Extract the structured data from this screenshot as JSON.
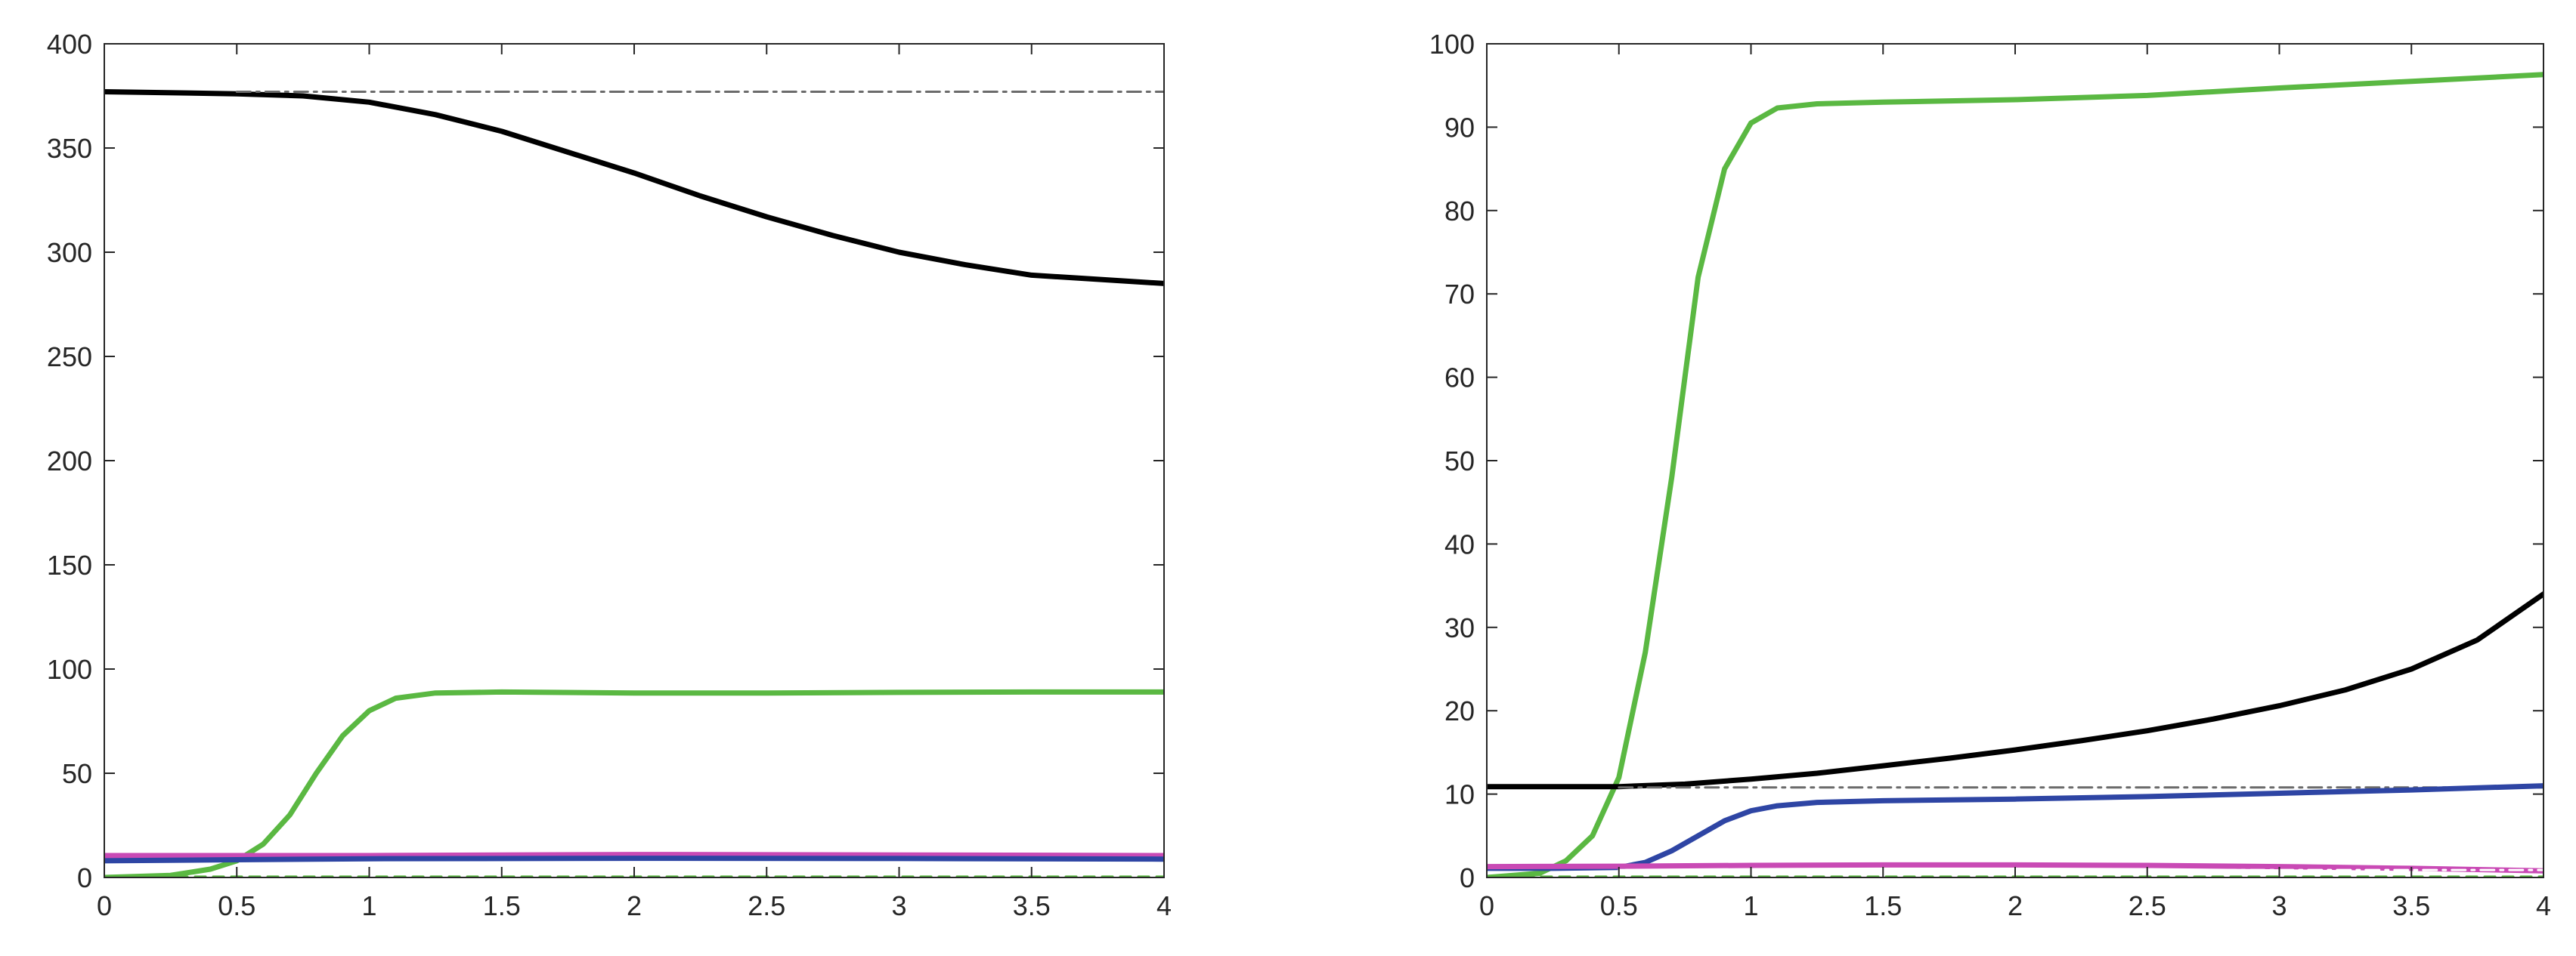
{
  "chart_data": [
    {
      "type": "line",
      "title": "",
      "xlabel": "",
      "ylabel": "",
      "xlim": [
        0,
        4
      ],
      "ylim": [
        0,
        400
      ],
      "xticks": [
        "0",
        "0.5",
        "1",
        "1.5",
        "2",
        "2.5",
        "3",
        "3.5",
        "4"
      ],
      "yticks": [
        "0",
        "50",
        "100",
        "150",
        "200",
        "250",
        "300",
        "350",
        "400"
      ],
      "grid": false,
      "series": [
        {
          "color": "#000000",
          "style": "solid",
          "x": [
            0,
            0.5,
            0.75,
            1.0,
            1.25,
            1.5,
            1.75,
            2.0,
            2.25,
            2.5,
            2.75,
            3.0,
            3.25,
            3.5,
            3.75,
            4.0
          ],
          "y": [
            377,
            376,
            375,
            372,
            366,
            358,
            348,
            338,
            327,
            317,
            308,
            300,
            294,
            289,
            287,
            285
          ]
        },
        {
          "color": "#6b6b6b",
          "style": "dashdot",
          "x": [
            0.5,
            4.0
          ],
          "y": [
            377,
            377
          ]
        },
        {
          "color": "#5ab842",
          "style": "solid",
          "x": [
            0,
            0.25,
            0.4,
            0.5,
            0.6,
            0.7,
            0.8,
            0.9,
            1.0,
            1.1,
            1.25,
            1.5,
            2.0,
            2.5,
            3.0,
            3.5,
            4.0
          ],
          "y": [
            0,
            1,
            4,
            8,
            16,
            30,
            50,
            68,
            80,
            86,
            88.5,
            89,
            88.5,
            88.5,
            88.8,
            89,
            89
          ]
        },
        {
          "color": "#c94ab5",
          "style": "solid",
          "x": [
            0,
            1,
            2,
            3,
            4
          ],
          "y": [
            10.5,
            10.5,
            11,
            10.8,
            10.5
          ]
        },
        {
          "color": "#2e45a4",
          "style": "solid",
          "x": [
            0,
            0.5,
            1,
            2,
            3,
            4
          ],
          "y": [
            8,
            8.5,
            9,
            9.2,
            9.1,
            8.8
          ]
        },
        {
          "color": "#ffffff",
          "style": "dashdot",
          "x": [
            1,
            4
          ],
          "y": [
            6,
            6
          ]
        },
        {
          "color": "#5ab842",
          "style": "dashed",
          "x": [
            0,
            4
          ],
          "y": [
            0.4,
            0.4
          ]
        }
      ]
    },
    {
      "type": "line",
      "title": "",
      "xlabel": "",
      "ylabel": "",
      "xlim": [
        0,
        4
      ],
      "ylim": [
        0,
        100
      ],
      "xticks": [
        "0",
        "0.5",
        "1",
        "1.5",
        "2",
        "2.5",
        "3",
        "3.5",
        "4"
      ],
      "yticks": [
        "0",
        "10",
        "20",
        "30",
        "40",
        "50",
        "60",
        "70",
        "80",
        "90",
        "100"
      ],
      "grid": false,
      "series": [
        {
          "color": "#5ab842",
          "style": "solid",
          "x": [
            0,
            0.2,
            0.3,
            0.4,
            0.5,
            0.6,
            0.7,
            0.75,
            0.8,
            0.9,
            1.0,
            1.1,
            1.25,
            1.5,
            2.0,
            2.5,
            3.0,
            3.5,
            4.0
          ],
          "y": [
            0,
            0.5,
            2,
            5,
            12,
            27,
            48,
            60,
            72,
            85,
            90.5,
            92.3,
            92.8,
            93,
            93.3,
            93.8,
            94.7,
            95.5,
            96.3
          ]
        },
        {
          "color": "#000000",
          "style": "solid",
          "x": [
            0,
            0.25,
            0.5,
            0.75,
            1.0,
            1.25,
            1.5,
            1.75,
            2.0,
            2.25,
            2.5,
            2.75,
            3.0,
            3.25,
            3.5,
            3.75,
            4.0
          ],
          "y": [
            10.9,
            10.9,
            10.9,
            11.2,
            11.8,
            12.5,
            13.4,
            14.3,
            15.3,
            16.4,
            17.6,
            19.0,
            20.6,
            22.5,
            25.0,
            28.5,
            34.0
          ]
        },
        {
          "color": "#6b6b6b",
          "style": "dashdot",
          "x": [
            0.5,
            4.0
          ],
          "y": [
            10.8,
            10.8
          ]
        },
        {
          "color": "#2e45a4",
          "style": "solid",
          "x": [
            0,
            0.25,
            0.5,
            0.6,
            0.7,
            0.8,
            0.9,
            1.0,
            1.1,
            1.25,
            1.5,
            2.0,
            2.5,
            3.0,
            3.5,
            4.0
          ],
          "y": [
            1.1,
            1.1,
            1.2,
            1.8,
            3.2,
            5.0,
            6.8,
            8.0,
            8.6,
            9.0,
            9.2,
            9.4,
            9.7,
            10.1,
            10.5,
            11.0
          ]
        },
        {
          "color": "#c94ab5",
          "style": "solid",
          "x": [
            0,
            0.5,
            1,
            1.5,
            2,
            2.5,
            3,
            3.5,
            4
          ],
          "y": [
            1.3,
            1.35,
            1.45,
            1.5,
            1.5,
            1.45,
            1.3,
            1.1,
            0.8
          ]
        },
        {
          "color": "#ffffff",
          "style": "dashdot",
          "x": [
            0.5,
            4.0
          ],
          "y": [
            0.9,
            0.9
          ]
        },
        {
          "color": "#5ab842",
          "style": "dashed",
          "x": [
            0,
            4
          ],
          "y": [
            0.1,
            0.1
          ]
        }
      ]
    }
  ]
}
